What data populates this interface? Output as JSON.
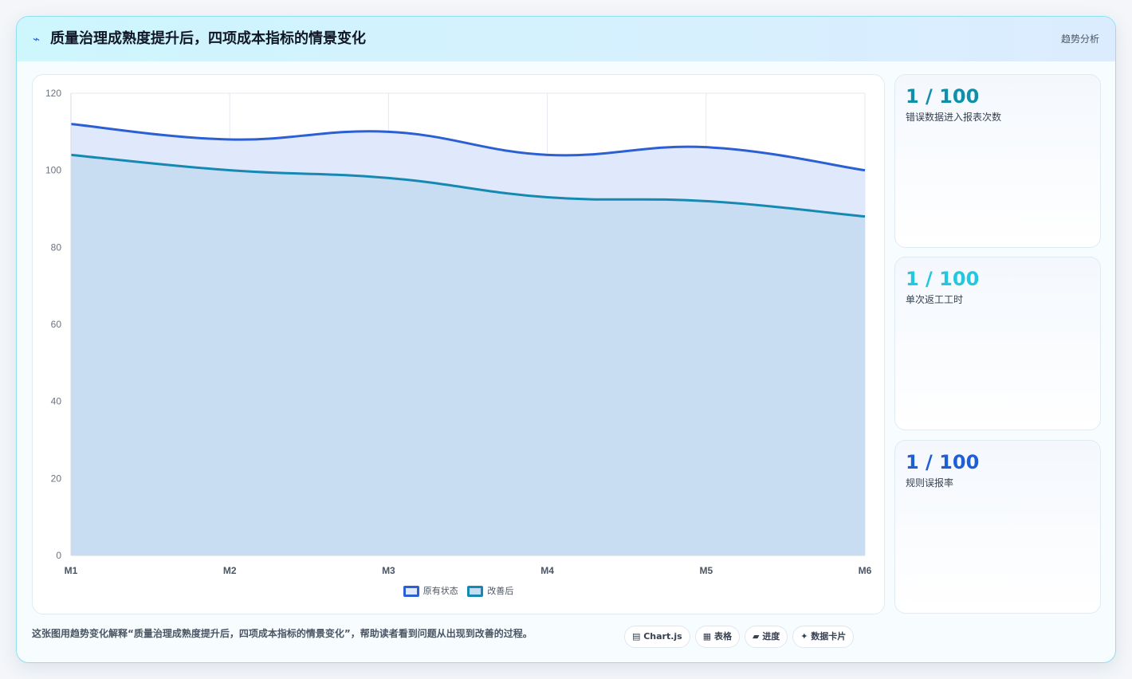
{
  "header": {
    "icon": "sparkle-icon",
    "title": "质量治理成熟度提升后，四项成本指标的情景变化",
    "tag": "趋势分析"
  },
  "chart_data": {
    "type": "area",
    "categories": [
      "M1",
      "M2",
      "M3",
      "M4",
      "M5",
      "M6"
    ],
    "ylim": [
      0,
      120
    ],
    "yticks": [
      0,
      20,
      40,
      60,
      80,
      100,
      120
    ],
    "grid": true,
    "legend_position": "bottom",
    "series": [
      {
        "name": "原有状态",
        "values": [
          112,
          108,
          110,
          104,
          106,
          100
        ],
        "color": "#2b5fd4",
        "fill": "#dfe9fb"
      },
      {
        "name": "改善后",
        "values": [
          104,
          100,
          98,
          93,
          92,
          88
        ],
        "color": "#1689b2",
        "fill": "#c5dcf1"
      }
    ]
  },
  "stats": [
    {
      "value": "1 / 100",
      "label": "错误数据进入报表次数",
      "color": "#0f8fa8"
    },
    {
      "value": "1 / 100",
      "label": "单次返工工时",
      "color": "#22c7e0"
    },
    {
      "value": "1 / 100",
      "label": "规则误报率",
      "color": "#1d5fd6"
    }
  ],
  "footer": {
    "text": "这张图用趋势变化解释“质量治理成熟度提升后，四项成本指标的情景变化”，帮助读者看到问题从出现到改善的过程。",
    "chips": [
      "▤ Chart.js",
      "▦ 表格",
      "▰ 进度",
      "✦ 数据卡片"
    ]
  }
}
